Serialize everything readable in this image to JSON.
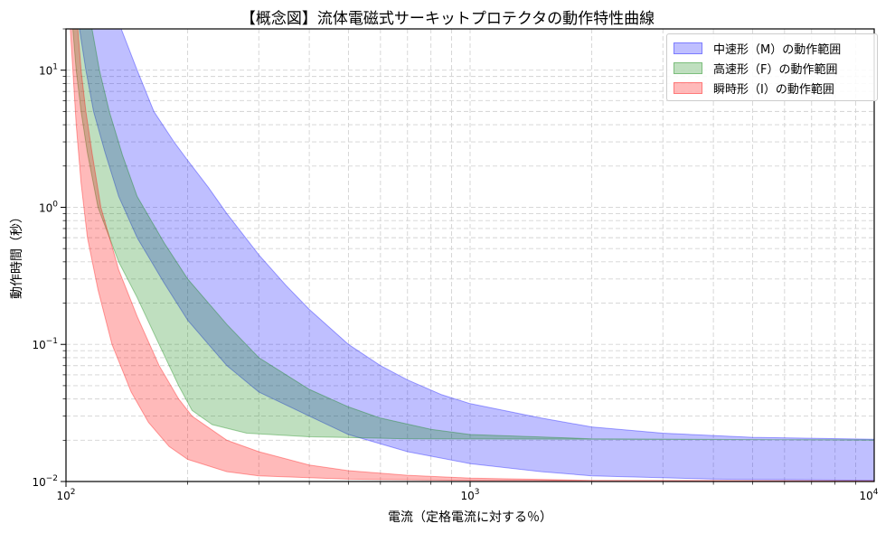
{
  "chart_data": {
    "type": "area",
    "title": "【概念図】流体電磁式サーキットプロテクタの動作特性曲線",
    "xlabel": "電流（定格電流に対する％）",
    "ylabel": "動作時間（秒）",
    "xscale": "log",
    "yscale": "log",
    "xlim": [
      100,
      10000
    ],
    "ylim": [
      0.01,
      20
    ],
    "grid": true,
    "legend_position": "upper right",
    "x_ticks": [
      {
        "value": 100,
        "base": "10",
        "exp": "2"
      },
      {
        "value": 1000,
        "base": "10",
        "exp": "3"
      },
      {
        "value": 10000,
        "base": "10",
        "exp": "4"
      }
    ],
    "y_ticks": [
      {
        "value": 0.01,
        "base": "10",
        "exp": "−2"
      },
      {
        "value": 0.1,
        "base": "10",
        "exp": "−1"
      },
      {
        "value": 1,
        "base": "10",
        "exp": "0"
      },
      {
        "value": 10,
        "base": "10",
        "exp": "1"
      }
    ],
    "series": [
      {
        "name": "中速形（M）の動作範囲",
        "color": "#0000ff",
        "fill": "rgba(0,0,255,0.25)",
        "edge": "rgba(0,0,255,0.35)",
        "upper": [
          [
            137,
            20
          ],
          [
            150,
            10
          ],
          [
            165,
            5
          ],
          [
            185,
            3
          ],
          [
            200,
            2.2
          ],
          [
            225,
            1.4
          ],
          [
            250,
            0.9
          ],
          [
            300,
            0.45
          ],
          [
            350,
            0.27
          ],
          [
            400,
            0.18
          ],
          [
            500,
            0.1
          ],
          [
            600,
            0.07
          ],
          [
            700,
            0.055
          ],
          [
            850,
            0.043
          ],
          [
            1000,
            0.037
          ],
          [
            1500,
            0.029
          ],
          [
            2000,
            0.025
          ],
          [
            3000,
            0.0225
          ],
          [
            5000,
            0.021
          ],
          [
            10000,
            0.0203
          ]
        ],
        "lower": [
          [
            108,
            20
          ],
          [
            112,
            10
          ],
          [
            117,
            5
          ],
          [
            125,
            2.5
          ],
          [
            135,
            1.2
          ],
          [
            150,
            0.6
          ],
          [
            175,
            0.28
          ],
          [
            200,
            0.15
          ],
          [
            250,
            0.07
          ],
          [
            300,
            0.045
          ],
          [
            400,
            0.03
          ],
          [
            500,
            0.022
          ],
          [
            700,
            0.0165
          ],
          [
            1000,
            0.0135
          ],
          [
            1500,
            0.0118
          ],
          [
            2000,
            0.011
          ],
          [
            4000,
            0.0104
          ],
          [
            10000,
            0.0102
          ]
        ]
      },
      {
        "name": "高速形（F）の動作範囲",
        "color": "#008000",
        "fill": "rgba(0,128,0,0.25)",
        "edge": "rgba(0,128,0,0.35)",
        "upper": [
          [
            116,
            20
          ],
          [
            121,
            10
          ],
          [
            128,
            5
          ],
          [
            138,
            2.4
          ],
          [
            150,
            1.2
          ],
          [
            175,
            0.55
          ],
          [
            200,
            0.3
          ],
          [
            250,
            0.14
          ],
          [
            300,
            0.08
          ],
          [
            400,
            0.047
          ],
          [
            500,
            0.035
          ],
          [
            600,
            0.029
          ],
          [
            800,
            0.024
          ],
          [
            1000,
            0.022
          ],
          [
            2000,
            0.0205
          ],
          [
            10000,
            0.02
          ]
        ],
        "lower": [
          [
            104,
            20
          ],
          [
            106,
            10
          ],
          [
            109,
            5
          ],
          [
            113,
            2.5
          ],
          [
            120,
            1.0
          ],
          [
            135,
            0.4
          ],
          [
            150,
            0.22
          ],
          [
            170,
            0.1
          ],
          [
            190,
            0.05
          ],
          [
            205,
            0.033
          ],
          [
            230,
            0.026
          ],
          [
            280,
            0.0225
          ],
          [
            400,
            0.0212
          ],
          [
            700,
            0.0205
          ],
          [
            10000,
            0.0201
          ]
        ]
      },
      {
        "name": "瞬時形（I）の動作範囲",
        "color": "#ff0000",
        "fill": "rgba(255,0,0,0.27)",
        "edge": "rgba(255,0,0,0.35)",
        "upper": [
          [
            107,
            20
          ],
          [
            109,
            10
          ],
          [
            112,
            5
          ],
          [
            116,
            2.5
          ],
          [
            122,
            1.0
          ],
          [
            135,
            0.35
          ],
          [
            150,
            0.16
          ],
          [
            170,
            0.07
          ],
          [
            190,
            0.04
          ],
          [
            205,
            0.03
          ],
          [
            250,
            0.02
          ],
          [
            300,
            0.0165
          ],
          [
            400,
            0.0132
          ],
          [
            500,
            0.012
          ],
          [
            700,
            0.0111
          ],
          [
            1000,
            0.0106
          ],
          [
            2000,
            0.0102
          ],
          [
            10000,
            0.0101
          ]
        ],
        "lower": [
          [
            102.5,
            20
          ],
          [
            104,
            10
          ],
          [
            106,
            4
          ],
          [
            109,
            1.5
          ],
          [
            113,
            0.6
          ],
          [
            120,
            0.25
          ],
          [
            130,
            0.1
          ],
          [
            145,
            0.045
          ],
          [
            160,
            0.027
          ],
          [
            180,
            0.018
          ],
          [
            200,
            0.0145
          ],
          [
            250,
            0.0118
          ],
          [
            300,
            0.011
          ],
          [
            500,
            0.0104
          ],
          [
            1000,
            0.0102
          ],
          [
            10000,
            0.01
          ]
        ]
      }
    ]
  }
}
